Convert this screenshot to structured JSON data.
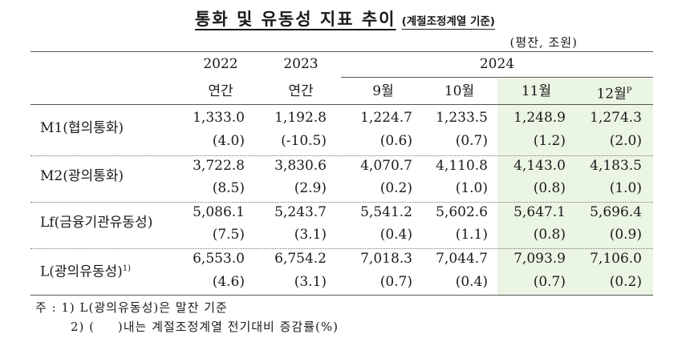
{
  "title": {
    "main": "통화 및 유동성 지표 추이",
    "sub": "(계절조정계열 기준)"
  },
  "unit_label": "(평잔, 조원)",
  "years": [
    "2022",
    "2023",
    "2024"
  ],
  "columns": [
    "연간",
    "연간",
    "9월",
    "10월",
    "11월",
    "12월"
  ],
  "col12_sup": "P",
  "highlight_color": "#ebf5e3",
  "rows": [
    {
      "label": "M1(협의통화)",
      "sup": "",
      "values": [
        "1,333.0",
        "1,192.8",
        "1,224.7",
        "1,233.5",
        "1,248.9",
        "1,274.3"
      ],
      "rates": [
        "(4.0)",
        "(-10.5)",
        "(0.6)",
        "(0.7)",
        "(1.2)",
        "(2.0)"
      ]
    },
    {
      "label": "M2(광의통화)",
      "sup": "",
      "values": [
        "3,722.8",
        "3,830.6",
        "4,070.7",
        "4,110.8",
        "4,143.0",
        "4,183.5"
      ],
      "rates": [
        "(8.5)",
        "(2.9)",
        "(0.2)",
        "(1.0)",
        "(0.8)",
        "(1.0)"
      ]
    },
    {
      "label": "Lf(금융기관유동성)",
      "sup": "",
      "values": [
        "5,086.1",
        "5,243.7",
        "5,541.2",
        "5,602.6",
        "5,647.1",
        "5,696.4"
      ],
      "rates": [
        "(7.5)",
        "(3.1)",
        "(0.4)",
        "(1.1)",
        "(0.8)",
        "(0.9)"
      ]
    },
    {
      "label": "L(광의유동성)",
      "sup": "1)",
      "values": [
        "6,553.0",
        "6,754.2",
        "7,018.3",
        "7,044.7",
        "7,093.9",
        "7,106.0"
      ],
      "rates": [
        "(4.6)",
        "(3.1)",
        "(0.7)",
        "(0.4)",
        "(0.7)",
        "(0.2)"
      ]
    }
  ],
  "notes": [
    "주 : 1) L(광의유동성)은 말잔 기준",
    "2) (     )내는 계절조정계열 전기대비 증감률(%)"
  ]
}
